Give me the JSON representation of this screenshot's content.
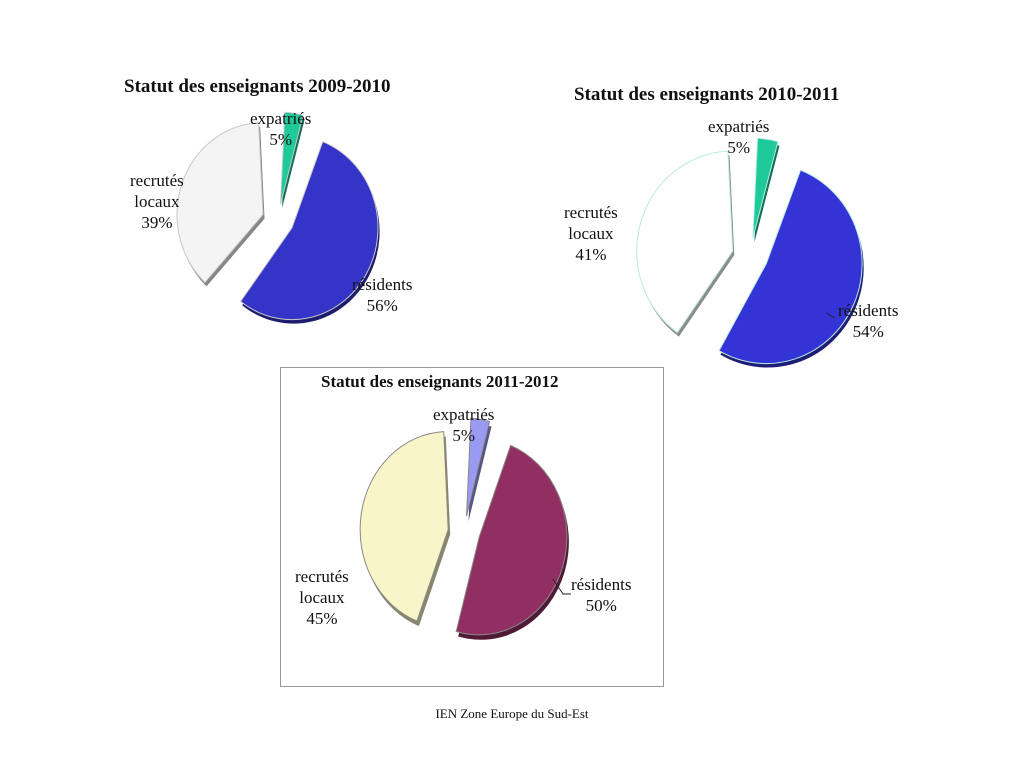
{
  "chart_data": [
    {
      "type": "pie",
      "title": "Statut des enseignants 2009-2010",
      "slices": [
        {
          "label_line1": "expatriés",
          "label_line2": "",
          "value_text": "5%",
          "value": 5,
          "color": "#1ec99a"
        },
        {
          "label_line1": "résidents",
          "label_line2": "",
          "value_text": "56%",
          "value": 56,
          "color": "#3434c8"
        },
        {
          "label_line1": "recrutés",
          "label_line2": "locaux",
          "value_text": "39%",
          "value": 39,
          "color": "#f4f4f4"
        }
      ]
    },
    {
      "type": "pie",
      "title": "Statut des enseignants 2010-2011",
      "slices": [
        {
          "label_line1": "expatriés",
          "label_line2": "",
          "value_text": "5%",
          "value": 5,
          "color": "#1ec99a"
        },
        {
          "label_line1": "résidents",
          "label_line2": "",
          "value_text": "54%",
          "value": 54,
          "color": "#3434d6"
        },
        {
          "label_line1": "recrutés",
          "label_line2": "locaux",
          "value_text": "41%",
          "value": 41,
          "color": "#ffffff"
        }
      ]
    },
    {
      "type": "pie",
      "title": "Statut des enseignants 2011-2012",
      "slices": [
        {
          "label_line1": "expatriés",
          "label_line2": "",
          "value_text": "5%",
          "value": 5,
          "color": "#9a9af2"
        },
        {
          "label_line1": "résidents",
          "label_line2": "",
          "value_text": "50%",
          "value": 50,
          "color": "#922f62"
        },
        {
          "label_line1": "recrutés",
          "label_line2": "locaux",
          "value_text": "45%",
          "value": 45,
          "color": "#f8f6c8"
        }
      ]
    }
  ],
  "footer": "IEN Zone Europe du Sud-Est"
}
